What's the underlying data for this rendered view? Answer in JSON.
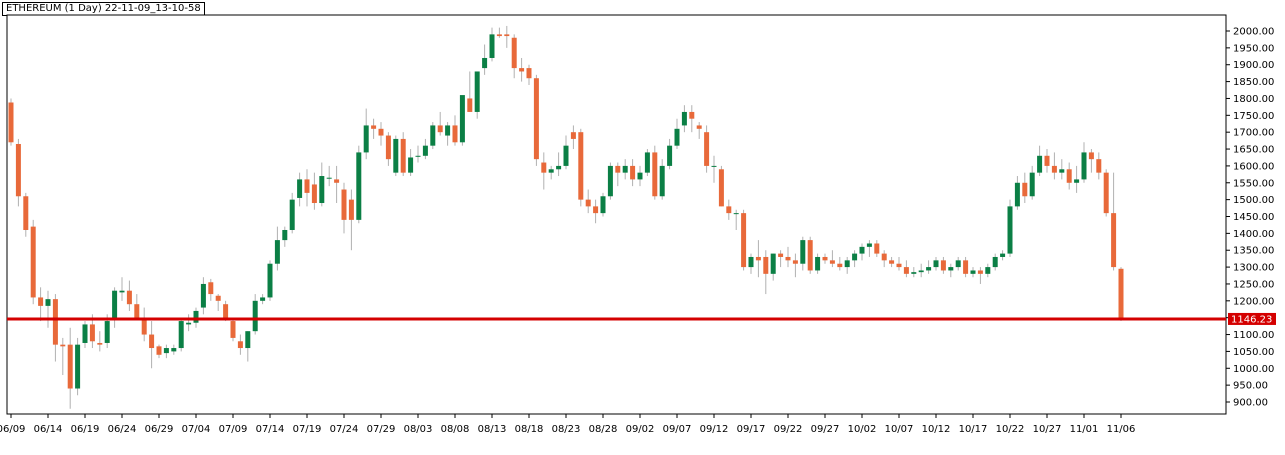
{
  "title": "ETHEREUM (1 Day) 22-11-09_13-10-58",
  "chart_data": {
    "type": "candlestick",
    "title": "ETHEREUM (1 Day) 22-11-09_13-10-58",
    "xlabel": "",
    "ylabel": "",
    "ylim": [
      860,
      2050
    ],
    "grid": false,
    "colors": {
      "up": "#0b7f45",
      "down": "#e8693a",
      "wick": "#b0b0b0",
      "level": "#d40000"
    },
    "y_ticks": [
      "2000.00",
      "1950.00",
      "1900.00",
      "1850.00",
      "1800.00",
      "1750.00",
      "1700.00",
      "1650.00",
      "1600.00",
      "1550.00",
      "1500.00",
      "1450.00",
      "1400.00",
      "1350.00",
      "1300.00",
      "1250.00",
      "1200.00",
      "1150.00",
      "1100.00",
      "1050.00",
      "1000.00",
      "950.00",
      "900.00"
    ],
    "x_ticks": [
      "06/09",
      "06/14",
      "06/19",
      "06/24",
      "06/29",
      "07/04",
      "07/09",
      "07/14",
      "07/19",
      "07/24",
      "07/29",
      "08/03",
      "08/08",
      "08/13",
      "08/18",
      "08/23",
      "08/28",
      "09/02",
      "09/07",
      "09/12",
      "09/17",
      "09/22",
      "09/27",
      "10/02",
      "10/07",
      "10/12",
      "10/17",
      "10/22",
      "10/27",
      "11/01",
      "11/06"
    ],
    "level": {
      "value": 1146.23,
      "label": "1146.23"
    },
    "candles": [
      {
        "o": 1788,
        "h": 1800,
        "l": 1660,
        "c": 1670
      },
      {
        "o": 1665,
        "h": 1680,
        "l": 1480,
        "c": 1510
      },
      {
        "o": 1510,
        "h": 1520,
        "l": 1390,
        "c": 1410
      },
      {
        "o": 1420,
        "h": 1440,
        "l": 1190,
        "c": 1210
      },
      {
        "o": 1210,
        "h": 1240,
        "l": 1140,
        "c": 1185
      },
      {
        "o": 1185,
        "h": 1230,
        "l": 1120,
        "c": 1205
      },
      {
        "o": 1205,
        "h": 1220,
        "l": 1020,
        "c": 1070
      },
      {
        "o": 1070,
        "h": 1090,
        "l": 980,
        "c": 1065
      },
      {
        "o": 1070,
        "h": 1120,
        "l": 880,
        "c": 940
      },
      {
        "o": 940,
        "h": 1090,
        "l": 920,
        "c": 1070
      },
      {
        "o": 1075,
        "h": 1140,
        "l": 1060,
        "c": 1130
      },
      {
        "o": 1130,
        "h": 1160,
        "l": 1060,
        "c": 1080
      },
      {
        "o": 1075,
        "h": 1110,
        "l": 1050,
        "c": 1070
      },
      {
        "o": 1075,
        "h": 1160,
        "l": 1060,
        "c": 1140
      },
      {
        "o": 1145,
        "h": 1240,
        "l": 1120,
        "c": 1230
      },
      {
        "o": 1225,
        "h": 1270,
        "l": 1200,
        "c": 1230
      },
      {
        "o": 1230,
        "h": 1260,
        "l": 1170,
        "c": 1190
      },
      {
        "o": 1190,
        "h": 1220,
        "l": 1150,
        "c": 1150
      },
      {
        "o": 1150,
        "h": 1180,
        "l": 1080,
        "c": 1100
      },
      {
        "o": 1100,
        "h": 1140,
        "l": 1000,
        "c": 1060
      },
      {
        "o": 1065,
        "h": 1070,
        "l": 1030,
        "c": 1040
      },
      {
        "o": 1045,
        "h": 1070,
        "l": 1030,
        "c": 1060
      },
      {
        "o": 1050,
        "h": 1070,
        "l": 1040,
        "c": 1060
      },
      {
        "o": 1060,
        "h": 1150,
        "l": 1050,
        "c": 1140
      },
      {
        "o": 1130,
        "h": 1160,
        "l": 1110,
        "c": 1135
      },
      {
        "o": 1135,
        "h": 1180,
        "l": 1120,
        "c": 1170
      },
      {
        "o": 1180,
        "h": 1270,
        "l": 1160,
        "c": 1250
      },
      {
        "o": 1255,
        "h": 1265,
        "l": 1200,
        "c": 1220
      },
      {
        "o": 1215,
        "h": 1220,
        "l": 1170,
        "c": 1200
      },
      {
        "o": 1190,
        "h": 1200,
        "l": 1140,
        "c": 1150
      },
      {
        "o": 1140,
        "h": 1150,
        "l": 1080,
        "c": 1090
      },
      {
        "o": 1080,
        "h": 1100,
        "l": 1040,
        "c": 1060
      },
      {
        "o": 1060,
        "h": 1110,
        "l": 1020,
        "c": 1110
      },
      {
        "o": 1110,
        "h": 1220,
        "l": 1100,
        "c": 1200
      },
      {
        "o": 1200,
        "h": 1220,
        "l": 1190,
        "c": 1210
      },
      {
        "o": 1210,
        "h": 1320,
        "l": 1200,
        "c": 1310
      },
      {
        "o": 1310,
        "h": 1420,
        "l": 1290,
        "c": 1380
      },
      {
        "o": 1380,
        "h": 1420,
        "l": 1360,
        "c": 1410
      },
      {
        "o": 1410,
        "h": 1520,
        "l": 1400,
        "c": 1500
      },
      {
        "o": 1505,
        "h": 1580,
        "l": 1480,
        "c": 1560
      },
      {
        "o": 1560,
        "h": 1590,
        "l": 1480,
        "c": 1520
      },
      {
        "o": 1545,
        "h": 1580,
        "l": 1470,
        "c": 1490
      },
      {
        "o": 1490,
        "h": 1610,
        "l": 1480,
        "c": 1570
      },
      {
        "o": 1565,
        "h": 1600,
        "l": 1540,
        "c": 1565
      },
      {
        "o": 1560,
        "h": 1600,
        "l": 1490,
        "c": 1550
      },
      {
        "o": 1530,
        "h": 1550,
        "l": 1400,
        "c": 1440
      },
      {
        "o": 1500,
        "h": 1530,
        "l": 1350,
        "c": 1440
      },
      {
        "o": 1440,
        "h": 1660,
        "l": 1430,
        "c": 1640
      },
      {
        "o": 1640,
        "h": 1770,
        "l": 1620,
        "c": 1720
      },
      {
        "o": 1720,
        "h": 1740,
        "l": 1680,
        "c": 1710
      },
      {
        "o": 1710,
        "h": 1730,
        "l": 1660,
        "c": 1690
      },
      {
        "o": 1690,
        "h": 1700,
        "l": 1600,
        "c": 1620
      },
      {
        "o": 1580,
        "h": 1690,
        "l": 1570,
        "c": 1680
      },
      {
        "o": 1680,
        "h": 1700,
        "l": 1570,
        "c": 1580
      },
      {
        "o": 1580,
        "h": 1650,
        "l": 1570,
        "c": 1625
      },
      {
        "o": 1630,
        "h": 1660,
        "l": 1610,
        "c": 1630
      },
      {
        "o": 1630,
        "h": 1680,
        "l": 1620,
        "c": 1660
      },
      {
        "o": 1660,
        "h": 1730,
        "l": 1650,
        "c": 1720
      },
      {
        "o": 1720,
        "h": 1760,
        "l": 1690,
        "c": 1700
      },
      {
        "o": 1690,
        "h": 1730,
        "l": 1660,
        "c": 1720
      },
      {
        "o": 1720,
        "h": 1750,
        "l": 1660,
        "c": 1670
      },
      {
        "o": 1670,
        "h": 1800,
        "l": 1660,
        "c": 1810
      },
      {
        "o": 1800,
        "h": 1880,
        "l": 1760,
        "c": 1760
      },
      {
        "o": 1760,
        "h": 1880,
        "l": 1740,
        "c": 1880
      },
      {
        "o": 1890,
        "h": 1960,
        "l": 1870,
        "c": 1920
      },
      {
        "o": 1920,
        "h": 2010,
        "l": 1910,
        "c": 1990
      },
      {
        "o": 1990,
        "h": 2010,
        "l": 1980,
        "c": 1985
      },
      {
        "o": 1990,
        "h": 2015,
        "l": 1950,
        "c": 1985
      },
      {
        "o": 1980,
        "h": 1990,
        "l": 1860,
        "c": 1890
      },
      {
        "o": 1890,
        "h": 1920,
        "l": 1850,
        "c": 1880
      },
      {
        "o": 1890,
        "h": 1900,
        "l": 1840,
        "c": 1860
      },
      {
        "o": 1860,
        "h": 1870,
        "l": 1600,
        "c": 1620
      },
      {
        "o": 1610,
        "h": 1640,
        "l": 1530,
        "c": 1580
      },
      {
        "o": 1580,
        "h": 1600,
        "l": 1560,
        "c": 1590
      },
      {
        "o": 1590,
        "h": 1640,
        "l": 1570,
        "c": 1600
      },
      {
        "o": 1600,
        "h": 1690,
        "l": 1590,
        "c": 1660
      },
      {
        "o": 1700,
        "h": 1720,
        "l": 1650,
        "c": 1680
      },
      {
        "o": 1700,
        "h": 1710,
        "l": 1480,
        "c": 1500
      },
      {
        "o": 1500,
        "h": 1530,
        "l": 1460,
        "c": 1480
      },
      {
        "o": 1480,
        "h": 1500,
        "l": 1430,
        "c": 1460
      },
      {
        "o": 1460,
        "h": 1520,
        "l": 1450,
        "c": 1510
      },
      {
        "o": 1510,
        "h": 1610,
        "l": 1500,
        "c": 1600
      },
      {
        "o": 1600,
        "h": 1610,
        "l": 1540,
        "c": 1580
      },
      {
        "o": 1580,
        "h": 1620,
        "l": 1560,
        "c": 1600
      },
      {
        "o": 1600,
        "h": 1620,
        "l": 1540,
        "c": 1560
      },
      {
        "o": 1560,
        "h": 1600,
        "l": 1540,
        "c": 1580
      },
      {
        "o": 1580,
        "h": 1650,
        "l": 1570,
        "c": 1640
      },
      {
        "o": 1640,
        "h": 1660,
        "l": 1500,
        "c": 1510
      },
      {
        "o": 1510,
        "h": 1620,
        "l": 1500,
        "c": 1600
      },
      {
        "o": 1600,
        "h": 1680,
        "l": 1590,
        "c": 1660
      },
      {
        "o": 1660,
        "h": 1740,
        "l": 1650,
        "c": 1710
      },
      {
        "o": 1720,
        "h": 1780,
        "l": 1700,
        "c": 1760
      },
      {
        "o": 1760,
        "h": 1780,
        "l": 1700,
        "c": 1740
      },
      {
        "o": 1720,
        "h": 1730,
        "l": 1680,
        "c": 1710
      },
      {
        "o": 1700,
        "h": 1720,
        "l": 1580,
        "c": 1600
      },
      {
        "o": 1600,
        "h": 1630,
        "l": 1550,
        "c": 1600
      },
      {
        "o": 1590,
        "h": 1600,
        "l": 1480,
        "c": 1480
      },
      {
        "o": 1480,
        "h": 1500,
        "l": 1440,
        "c": 1460
      },
      {
        "o": 1460,
        "h": 1470,
        "l": 1410,
        "c": 1460
      },
      {
        "o": 1460,
        "h": 1470,
        "l": 1290,
        "c": 1300
      },
      {
        "o": 1300,
        "h": 1340,
        "l": 1280,
        "c": 1330
      },
      {
        "o": 1330,
        "h": 1380,
        "l": 1270,
        "c": 1320
      },
      {
        "o": 1330,
        "h": 1350,
        "l": 1220,
        "c": 1280
      },
      {
        "o": 1280,
        "h": 1340,
        "l": 1260,
        "c": 1340
      },
      {
        "o": 1340,
        "h": 1350,
        "l": 1300,
        "c": 1330
      },
      {
        "o": 1330,
        "h": 1360,
        "l": 1300,
        "c": 1320
      },
      {
        "o": 1320,
        "h": 1340,
        "l": 1270,
        "c": 1310
      },
      {
        "o": 1310,
        "h": 1390,
        "l": 1290,
        "c": 1380
      },
      {
        "o": 1380,
        "h": 1390,
        "l": 1280,
        "c": 1290
      },
      {
        "o": 1290,
        "h": 1340,
        "l": 1280,
        "c": 1330
      },
      {
        "o": 1330,
        "h": 1340,
        "l": 1310,
        "c": 1320
      },
      {
        "o": 1320,
        "h": 1350,
        "l": 1300,
        "c": 1310
      },
      {
        "o": 1310,
        "h": 1330,
        "l": 1290,
        "c": 1300
      },
      {
        "o": 1300,
        "h": 1330,
        "l": 1280,
        "c": 1320
      },
      {
        "o": 1320,
        "h": 1350,
        "l": 1300,
        "c": 1340
      },
      {
        "o": 1340,
        "h": 1370,
        "l": 1320,
        "c": 1360
      },
      {
        "o": 1360,
        "h": 1380,
        "l": 1330,
        "c": 1370
      },
      {
        "o": 1370,
        "h": 1380,
        "l": 1330,
        "c": 1340
      },
      {
        "o": 1340,
        "h": 1350,
        "l": 1300,
        "c": 1320
      },
      {
        "o": 1320,
        "h": 1330,
        "l": 1300,
        "c": 1310
      },
      {
        "o": 1310,
        "h": 1330,
        "l": 1290,
        "c": 1300
      },
      {
        "o": 1300,
        "h": 1320,
        "l": 1270,
        "c": 1280
      },
      {
        "o": 1280,
        "h": 1300,
        "l": 1270,
        "c": 1285
      },
      {
        "o": 1285,
        "h": 1310,
        "l": 1270,
        "c": 1290
      },
      {
        "o": 1290,
        "h": 1320,
        "l": 1280,
        "c": 1300
      },
      {
        "o": 1300,
        "h": 1330,
        "l": 1290,
        "c": 1320
      },
      {
        "o": 1320,
        "h": 1330,
        "l": 1280,
        "c": 1290
      },
      {
        "o": 1290,
        "h": 1310,
        "l": 1270,
        "c": 1300
      },
      {
        "o": 1300,
        "h": 1330,
        "l": 1290,
        "c": 1320
      },
      {
        "o": 1320,
        "h": 1330,
        "l": 1270,
        "c": 1280
      },
      {
        "o": 1280,
        "h": 1300,
        "l": 1270,
        "c": 1290
      },
      {
        "o": 1290,
        "h": 1300,
        "l": 1250,
        "c": 1280
      },
      {
        "o": 1280,
        "h": 1310,
        "l": 1270,
        "c": 1300
      },
      {
        "o": 1300,
        "h": 1340,
        "l": 1290,
        "c": 1330
      },
      {
        "o": 1330,
        "h": 1350,
        "l": 1320,
        "c": 1340
      },
      {
        "o": 1340,
        "h": 1500,
        "l": 1330,
        "c": 1480
      },
      {
        "o": 1480,
        "h": 1570,
        "l": 1470,
        "c": 1550
      },
      {
        "o": 1550,
        "h": 1580,
        "l": 1490,
        "c": 1510
      },
      {
        "o": 1510,
        "h": 1600,
        "l": 1500,
        "c": 1580
      },
      {
        "o": 1580,
        "h": 1660,
        "l": 1570,
        "c": 1630
      },
      {
        "o": 1630,
        "h": 1650,
        "l": 1580,
        "c": 1600
      },
      {
        "o": 1600,
        "h": 1640,
        "l": 1560,
        "c": 1580
      },
      {
        "o": 1580,
        "h": 1620,
        "l": 1560,
        "c": 1590
      },
      {
        "o": 1590,
        "h": 1610,
        "l": 1530,
        "c": 1550
      },
      {
        "o": 1550,
        "h": 1600,
        "l": 1520,
        "c": 1560
      },
      {
        "o": 1560,
        "h": 1670,
        "l": 1550,
        "c": 1640
      },
      {
        "o": 1640,
        "h": 1650,
        "l": 1580,
        "c": 1620
      },
      {
        "o": 1620,
        "h": 1640,
        "l": 1560,
        "c": 1580
      },
      {
        "o": 1580,
        "h": 1590,
        "l": 1450,
        "c": 1460
      },
      {
        "o": 1460,
        "h": 1580,
        "l": 1290,
        "c": 1300
      },
      {
        "o": 1295,
        "h": 1300,
        "l": 1140,
        "c": 1146.23
      }
    ]
  }
}
